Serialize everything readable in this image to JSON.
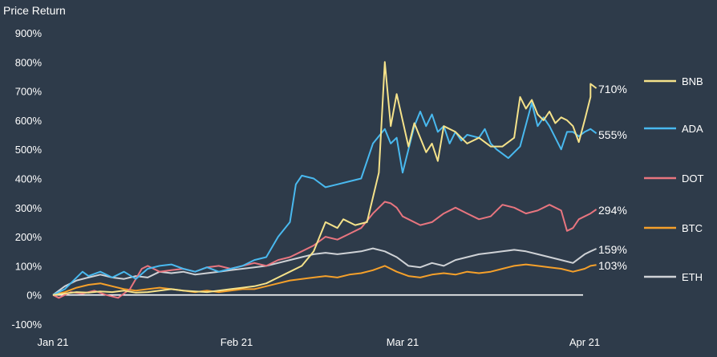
{
  "chart_data": {
    "type": "line",
    "title": "",
    "ylabel": "Price Return",
    "xlabel": "",
    "ylim": [
      -100,
      900
    ],
    "yticks": [
      -100,
      0,
      100,
      200,
      300,
      400,
      500,
      600,
      700,
      800,
      900
    ],
    "ytick_labels": [
      "-100%",
      "0%",
      "100%",
      "200%",
      "300%",
      "400%",
      "500%",
      "600%",
      "700%",
      "800%",
      "900%"
    ],
    "x_domain": [
      "2021-01-01",
      "2021-04-03"
    ],
    "xticks": [
      "2021-01-01",
      "2021-02-01",
      "2021-03-01",
      "2021-04-01"
    ],
    "xtick_labels": [
      "Jan 21",
      "Feb 21",
      "Mar 21",
      "Apr 21"
    ],
    "grid": false,
    "zero_line": true,
    "legend_position": "right",
    "series": [
      {
        "name": "BNB",
        "color": "#f5e28a",
        "end_label": "710%",
        "points": [
          [
            "2021-01-01",
            0
          ],
          [
            "2021-01-03",
            5
          ],
          [
            "2021-01-05",
            10
          ],
          [
            "2021-01-07",
            8
          ],
          [
            "2021-01-09",
            12
          ],
          [
            "2021-01-11",
            10
          ],
          [
            "2021-01-13",
            15
          ],
          [
            "2021-01-15",
            8
          ],
          [
            "2021-01-17",
            10
          ],
          [
            "2021-01-19",
            15
          ],
          [
            "2021-01-21",
            20
          ],
          [
            "2021-01-23",
            15
          ],
          [
            "2021-01-25",
            12
          ],
          [
            "2021-01-27",
            10
          ],
          [
            "2021-01-29",
            15
          ],
          [
            "2021-01-31",
            20
          ],
          [
            "2021-02-02",
            25
          ],
          [
            "2021-02-04",
            30
          ],
          [
            "2021-02-06",
            40
          ],
          [
            "2021-02-08",
            60
          ],
          [
            "2021-02-10",
            80
          ],
          [
            "2021-02-12",
            100
          ],
          [
            "2021-02-14",
            150
          ],
          [
            "2021-02-16",
            250
          ],
          [
            "2021-02-18",
            230
          ],
          [
            "2021-02-19",
            260
          ],
          [
            "2021-02-21",
            240
          ],
          [
            "2021-02-23",
            250
          ],
          [
            "2021-02-25",
            420
          ],
          [
            "2021-02-26",
            800
          ],
          [
            "2021-02-27",
            580
          ],
          [
            "2021-02-28",
            690
          ],
          [
            "2021-03-02",
            510
          ],
          [
            "2021-03-03",
            590
          ],
          [
            "2021-03-05",
            490
          ],
          [
            "2021-03-06",
            520
          ],
          [
            "2021-03-07",
            460
          ],
          [
            "2021-03-08",
            580
          ],
          [
            "2021-03-10",
            560
          ],
          [
            "2021-03-12",
            520
          ],
          [
            "2021-03-14",
            540
          ],
          [
            "2021-03-16",
            510
          ],
          [
            "2021-03-18",
            510
          ],
          [
            "2021-03-20",
            540
          ],
          [
            "2021-03-21",
            680
          ],
          [
            "2021-03-22",
            640
          ],
          [
            "2021-03-23",
            670
          ],
          [
            "2021-03-24",
            620
          ],
          [
            "2021-03-25",
            600
          ],
          [
            "2021-03-26",
            630
          ],
          [
            "2021-03-27",
            590
          ],
          [
            "2021-03-28",
            610
          ],
          [
            "2021-03-29",
            600
          ],
          [
            "2021-03-30",
            580
          ],
          [
            "2021-03-31",
            525
          ],
          [
            "2021-04-01",
            600
          ],
          [
            "2021-04-02",
            680
          ],
          [
            "2021-04-02",
            725
          ],
          [
            "2021-04-03",
            710
          ]
        ]
      },
      {
        "name": "ADA",
        "color": "#49b9ef",
        "end_label": "555%",
        "points": [
          [
            "2021-01-01",
            0
          ],
          [
            "2021-01-03",
            20
          ],
          [
            "2021-01-05",
            60
          ],
          [
            "2021-01-06",
            80
          ],
          [
            "2021-01-07",
            65
          ],
          [
            "2021-01-09",
            80
          ],
          [
            "2021-01-11",
            60
          ],
          [
            "2021-01-13",
            80
          ],
          [
            "2021-01-15",
            55
          ],
          [
            "2021-01-17",
            90
          ],
          [
            "2021-01-19",
            100
          ],
          [
            "2021-01-21",
            105
          ],
          [
            "2021-01-23",
            90
          ],
          [
            "2021-01-25",
            80
          ],
          [
            "2021-01-27",
            95
          ],
          [
            "2021-01-29",
            80
          ],
          [
            "2021-01-31",
            90
          ],
          [
            "2021-02-02",
            100
          ],
          [
            "2021-02-04",
            120
          ],
          [
            "2021-02-06",
            130
          ],
          [
            "2021-02-08",
            200
          ],
          [
            "2021-02-10",
            250
          ],
          [
            "2021-02-11",
            380
          ],
          [
            "2021-02-12",
            410
          ],
          [
            "2021-02-14",
            400
          ],
          [
            "2021-02-16",
            370
          ],
          [
            "2021-02-18",
            380
          ],
          [
            "2021-02-20",
            390
          ],
          [
            "2021-02-22",
            400
          ],
          [
            "2021-02-24",
            520
          ],
          [
            "2021-02-26",
            570
          ],
          [
            "2021-02-27",
            520
          ],
          [
            "2021-02-28",
            540
          ],
          [
            "2021-03-01",
            420
          ],
          [
            "2021-03-02",
            500
          ],
          [
            "2021-03-03",
            580
          ],
          [
            "2021-03-04",
            630
          ],
          [
            "2021-03-05",
            580
          ],
          [
            "2021-03-06",
            620
          ],
          [
            "2021-03-07",
            560
          ],
          [
            "2021-03-08",
            580
          ],
          [
            "2021-03-09",
            520
          ],
          [
            "2021-03-10",
            560
          ],
          [
            "2021-03-11",
            530
          ],
          [
            "2021-03-12",
            550
          ],
          [
            "2021-03-14",
            540
          ],
          [
            "2021-03-15",
            570
          ],
          [
            "2021-03-16",
            520
          ],
          [
            "2021-03-17",
            500
          ],
          [
            "2021-03-19",
            470
          ],
          [
            "2021-03-21",
            510
          ],
          [
            "2021-03-23",
            660
          ],
          [
            "2021-03-24",
            580
          ],
          [
            "2021-03-25",
            610
          ],
          [
            "2021-03-26",
            580
          ],
          [
            "2021-03-27",
            540
          ],
          [
            "2021-03-28",
            500
          ],
          [
            "2021-03-29",
            560
          ],
          [
            "2021-03-30",
            560
          ],
          [
            "2021-03-31",
            545
          ],
          [
            "2021-04-01",
            560
          ],
          [
            "2021-04-02",
            570
          ],
          [
            "2021-04-03",
            555
          ]
        ]
      },
      {
        "name": "DOT",
        "color": "#e8757f",
        "end_label": "294%",
        "points": [
          [
            "2021-01-01",
            0
          ],
          [
            "2021-01-02",
            -10
          ],
          [
            "2021-01-04",
            10
          ],
          [
            "2021-01-06",
            5
          ],
          [
            "2021-01-08",
            15
          ],
          [
            "2021-01-10",
            0
          ],
          [
            "2021-01-12",
            -10
          ],
          [
            "2021-01-14",
            20
          ],
          [
            "2021-01-16",
            90
          ],
          [
            "2021-01-17",
            100
          ],
          [
            "2021-01-19",
            80
          ],
          [
            "2021-01-21",
            85
          ],
          [
            "2021-01-23",
            90
          ],
          [
            "2021-01-25",
            80
          ],
          [
            "2021-01-27",
            95
          ],
          [
            "2021-01-29",
            100
          ],
          [
            "2021-01-31",
            90
          ],
          [
            "2021-02-02",
            100
          ],
          [
            "2021-02-04",
            110
          ],
          [
            "2021-02-06",
            100
          ],
          [
            "2021-02-08",
            120
          ],
          [
            "2021-02-10",
            130
          ],
          [
            "2021-02-12",
            150
          ],
          [
            "2021-02-14",
            170
          ],
          [
            "2021-02-16",
            200
          ],
          [
            "2021-02-18",
            190
          ],
          [
            "2021-02-20",
            210
          ],
          [
            "2021-02-22",
            230
          ],
          [
            "2021-02-24",
            280
          ],
          [
            "2021-02-26",
            320
          ],
          [
            "2021-02-27",
            315
          ],
          [
            "2021-02-28",
            300
          ],
          [
            "2021-03-01",
            270
          ],
          [
            "2021-03-02",
            260
          ],
          [
            "2021-03-04",
            240
          ],
          [
            "2021-03-06",
            250
          ],
          [
            "2021-03-08",
            280
          ],
          [
            "2021-03-10",
            300
          ],
          [
            "2021-03-12",
            280
          ],
          [
            "2021-03-14",
            260
          ],
          [
            "2021-03-16",
            270
          ],
          [
            "2021-03-18",
            310
          ],
          [
            "2021-03-20",
            300
          ],
          [
            "2021-03-22",
            280
          ],
          [
            "2021-03-24",
            290
          ],
          [
            "2021-03-26",
            310
          ],
          [
            "2021-03-28",
            290
          ],
          [
            "2021-03-29",
            220
          ],
          [
            "2021-03-30",
            230
          ],
          [
            "2021-03-31",
            260
          ],
          [
            "2021-04-01",
            270
          ],
          [
            "2021-04-02",
            280
          ],
          [
            "2021-04-03",
            294
          ]
        ]
      },
      {
        "name": "BTC",
        "color": "#f5a02a",
        "end_label": "103%",
        "points": [
          [
            "2021-01-01",
            0
          ],
          [
            "2021-01-03",
            10
          ],
          [
            "2021-01-05",
            25
          ],
          [
            "2021-01-07",
            35
          ],
          [
            "2021-01-09",
            40
          ],
          [
            "2021-01-11",
            30
          ],
          [
            "2021-01-13",
            20
          ],
          [
            "2021-01-15",
            15
          ],
          [
            "2021-01-17",
            20
          ],
          [
            "2021-01-19",
            25
          ],
          [
            "2021-01-21",
            20
          ],
          [
            "2021-01-23",
            15
          ],
          [
            "2021-01-25",
            10
          ],
          [
            "2021-01-27",
            15
          ],
          [
            "2021-01-29",
            10
          ],
          [
            "2021-01-31",
            15
          ],
          [
            "2021-02-02",
            20
          ],
          [
            "2021-02-04",
            20
          ],
          [
            "2021-02-06",
            30
          ],
          [
            "2021-02-08",
            40
          ],
          [
            "2021-02-10",
            50
          ],
          [
            "2021-02-12",
            55
          ],
          [
            "2021-02-14",
            60
          ],
          [
            "2021-02-16",
            65
          ],
          [
            "2021-02-18",
            60
          ],
          [
            "2021-02-20",
            70
          ],
          [
            "2021-02-22",
            75
          ],
          [
            "2021-02-24",
            85
          ],
          [
            "2021-02-26",
            100
          ],
          [
            "2021-02-28",
            80
          ],
          [
            "2021-03-02",
            65
          ],
          [
            "2021-03-04",
            60
          ],
          [
            "2021-03-06",
            70
          ],
          [
            "2021-03-08",
            75
          ],
          [
            "2021-03-10",
            70
          ],
          [
            "2021-03-12",
            80
          ],
          [
            "2021-03-14",
            75
          ],
          [
            "2021-03-16",
            80
          ],
          [
            "2021-03-18",
            90
          ],
          [
            "2021-03-20",
            100
          ],
          [
            "2021-03-22",
            105
          ],
          [
            "2021-03-24",
            100
          ],
          [
            "2021-03-26",
            95
          ],
          [
            "2021-03-28",
            90
          ],
          [
            "2021-03-30",
            80
          ],
          [
            "2021-04-01",
            90
          ],
          [
            "2021-04-02",
            100
          ],
          [
            "2021-04-03",
            103
          ]
        ]
      },
      {
        "name": "ETH",
        "color": "#cfd2d6",
        "end_label": "159%",
        "points": [
          [
            "2021-01-01",
            0
          ],
          [
            "2021-01-03",
            30
          ],
          [
            "2021-01-05",
            50
          ],
          [
            "2021-01-07",
            60
          ],
          [
            "2021-01-09",
            70
          ],
          [
            "2021-01-11",
            60
          ],
          [
            "2021-01-13",
            55
          ],
          [
            "2021-01-15",
            65
          ],
          [
            "2021-01-17",
            60
          ],
          [
            "2021-01-19",
            80
          ],
          [
            "2021-01-21",
            75
          ],
          [
            "2021-01-23",
            80
          ],
          [
            "2021-01-25",
            70
          ],
          [
            "2021-01-27",
            75
          ],
          [
            "2021-01-29",
            80
          ],
          [
            "2021-01-31",
            85
          ],
          [
            "2021-02-02",
            90
          ],
          [
            "2021-02-04",
            95
          ],
          [
            "2021-02-06",
            100
          ],
          [
            "2021-02-08",
            110
          ],
          [
            "2021-02-10",
            120
          ],
          [
            "2021-02-12",
            130
          ],
          [
            "2021-02-14",
            140
          ],
          [
            "2021-02-16",
            145
          ],
          [
            "2021-02-18",
            140
          ],
          [
            "2021-02-20",
            145
          ],
          [
            "2021-02-22",
            150
          ],
          [
            "2021-02-24",
            160
          ],
          [
            "2021-02-26",
            150
          ],
          [
            "2021-02-28",
            130
          ],
          [
            "2021-03-02",
            100
          ],
          [
            "2021-03-04",
            95
          ],
          [
            "2021-03-06",
            110
          ],
          [
            "2021-03-08",
            100
          ],
          [
            "2021-03-10",
            120
          ],
          [
            "2021-03-12",
            130
          ],
          [
            "2021-03-14",
            140
          ],
          [
            "2021-03-16",
            145
          ],
          [
            "2021-03-18",
            150
          ],
          [
            "2021-03-20",
            155
          ],
          [
            "2021-03-22",
            150
          ],
          [
            "2021-03-24",
            140
          ],
          [
            "2021-03-26",
            130
          ],
          [
            "2021-03-28",
            120
          ],
          [
            "2021-03-30",
            110
          ],
          [
            "2021-04-01",
            140
          ],
          [
            "2021-04-02",
            150
          ],
          [
            "2021-04-03",
            159
          ]
        ]
      }
    ],
    "legend_order": [
      "BNB",
      "ADA",
      "DOT",
      "BTC",
      "ETH"
    ]
  }
}
